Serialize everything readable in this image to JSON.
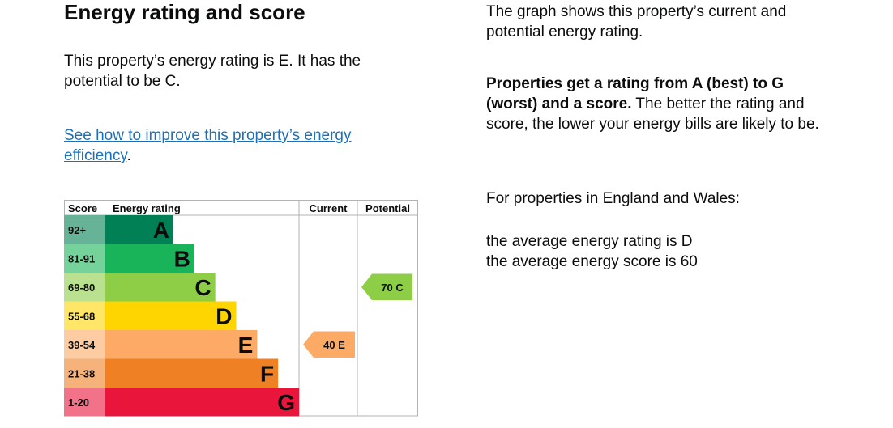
{
  "heading": "Energy rating and score",
  "rating_text": "This property’s energy rating is E. It has the potential to be C.",
  "improve_link": "See how to improve this property’s energy efficiency",
  "improve_link_suffix": ".",
  "right": {
    "graph_text": "The graph shows this property’s current and potential energy rating.",
    "ratings_bold": "Properties get a rating from A (best) to G (worst) and a score.",
    "ratings_rest": " The better the rating and score, the lower your energy bills are likely to be.",
    "region_text": "For properties in England and Wales:",
    "avg_rating": "the average energy rating is D",
    "avg_score": "the average energy score is 60"
  },
  "chart_data": {
    "type": "table",
    "headers": {
      "score": "Score",
      "rating": "Energy rating",
      "current": "Current",
      "potential": "Potential"
    },
    "bands": [
      {
        "score": "92+",
        "letter": "A",
        "color": "#008054"
      },
      {
        "score": "81-91",
        "letter": "B",
        "color": "#19b459"
      },
      {
        "score": "69-80",
        "letter": "C",
        "color": "#8dce46"
      },
      {
        "score": "55-68",
        "letter": "D",
        "color": "#ffd500"
      },
      {
        "score": "39-54",
        "letter": "E",
        "color": "#fcaa65"
      },
      {
        "score": "21-38",
        "letter": "F",
        "color": "#ef8023"
      },
      {
        "score": "1-20",
        "letter": "G",
        "color": "#e9153b"
      }
    ],
    "current": {
      "value": 40,
      "letter": "E",
      "label": "40 E"
    },
    "potential": {
      "value": 70,
      "letter": "C",
      "label": "70 C"
    }
  }
}
